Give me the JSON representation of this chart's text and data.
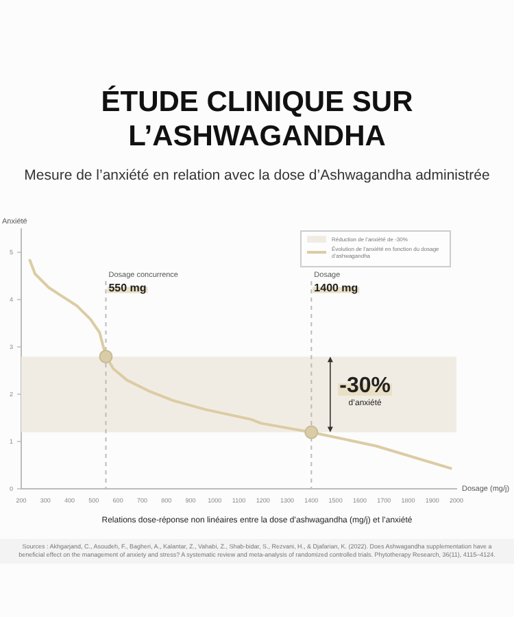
{
  "chart_data": {
    "type": "line",
    "title": "ÉTUDE CLINIQUE SUR L’ASHWAGANDHA",
    "subtitle": "Mesure de l’anxiété en relation avec la dose d’Ashwagandha administrée",
    "xlabel": "Dosage (mg/j)",
    "ylabel": "Anxiété",
    "xlim": [
      200,
      2000
    ],
    "xticks": [
      200,
      300,
      400,
      500,
      600,
      700,
      800,
      900,
      1000,
      1100,
      1200,
      1300,
      1400,
      1500,
      1600,
      1700,
      1800,
      1900,
      2000
    ],
    "ylim": [
      0,
      5.5
    ],
    "yticks": [
      0,
      1,
      2,
      3,
      4,
      5
    ],
    "grid": false,
    "legend": "top right",
    "line_style": "solid",
    "series": [
      {
        "name": "Évolution de l’anxiété en fonction du dosage d’ashwagandha",
        "marker": "none",
        "color": "#dccca4",
        "x": [
          234,
          257,
          314,
          371,
          429,
          486,
          524,
          539,
          552,
          581,
          638,
          733,
          829,
          962,
          1152,
          1191,
          1400,
          1667,
          1981
        ],
        "values": [
          4.86,
          4.55,
          4.26,
          4.07,
          3.88,
          3.59,
          3.31,
          3.02,
          2.8,
          2.54,
          2.3,
          2.06,
          1.87,
          1.68,
          1.47,
          1.39,
          1.2,
          0.91,
          0.43
        ]
      },
      {
        "type": "scatter",
        "marker": "circle",
        "color": "#d9cda9",
        "x": [
          550,
          1400
        ],
        "values": [
          2.8,
          1.2
        ]
      }
    ],
    "bands": [
      {
        "axis": "y",
        "from": 1.2,
        "to": 2.8,
        "label": "Réduction de l’anxiété de -30%",
        "color": "#f1ece3"
      }
    ],
    "ref_lines": [
      {
        "axis": "x",
        "value": 550,
        "label": "Dosage concurrence",
        "color": "#bbbbbb",
        "line_style": "dashed"
      },
      {
        "axis": "x",
        "value": 1400,
        "label": "Dosage",
        "color": "#bbbbbb",
        "line_style": "dashed"
      }
    ],
    "annotations": [
      {
        "text": "550 mg",
        "x": 550,
        "y": 4.25
      },
      {
        "text": "1400 mg",
        "x": 1400,
        "y": 4.25
      },
      "-30%",
      "d’anxiété",
      "Relations dose-réponse non linéaires entre la dose d’ashwagandha (mg/j) et l’anxiété",
      "Sources : Akhgarjand, C., Asoudeh, F., Bagheri, A., Kalantar, Z., Vahabi, Z., Shab-bidar, S., Rezvani, H., & Djafarian, K. (2022). Does Ashwagandha supplementation have a beneficial effect on the management of anxiety and stress? A systematic review and meta-analysis of randomized controlled trials. Phytotherapy Research, 36(11), 4115–4124."
    ]
  }
}
